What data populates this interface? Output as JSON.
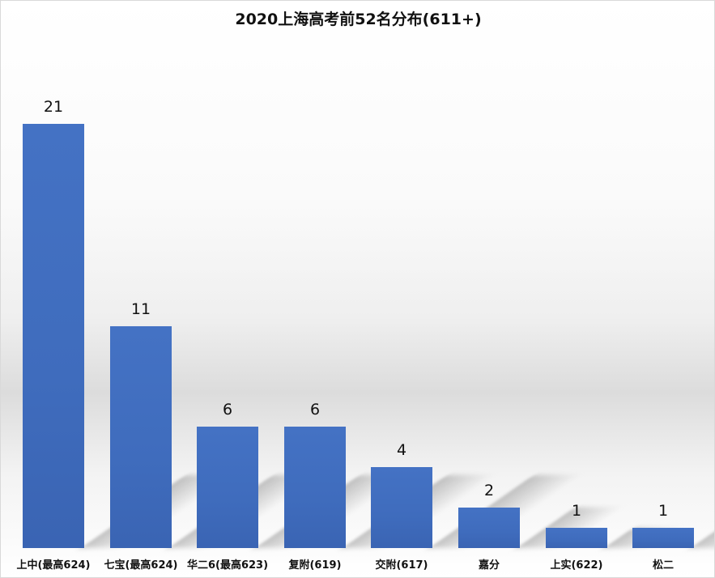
{
  "chart_data": {
    "type": "bar",
    "title": "2020上海高考前52名分布(611+)",
    "categories": [
      "上中(最高624)",
      "七宝(最高624)",
      "华二6(最高623)",
      "复附(619)",
      "交附(617)",
      "嘉分",
      "上实(622)",
      "松二"
    ],
    "values": [
      21,
      11,
      6,
      6,
      4,
      2,
      1,
      1
    ],
    "value_labels": [
      "21",
      "11",
      "6",
      "6",
      "4",
      "2",
      "1",
      "1"
    ],
    "xlabel": "",
    "ylabel": "",
    "ylim": [
      0,
      21
    ],
    "grid": false,
    "legend": "none",
    "bar_color": "#4472c4"
  }
}
